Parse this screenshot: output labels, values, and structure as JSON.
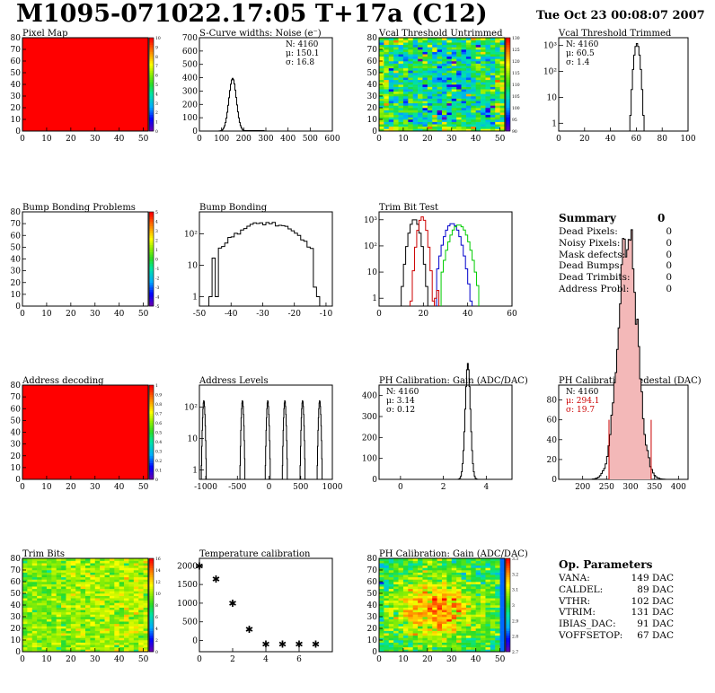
{
  "header": {
    "title": "M1095-071022.17:05 T+17a (C12)",
    "date": "Tue Oct 23 00:08:07 2007"
  },
  "colors": {
    "hist_red": "#cc0000",
    "hist_blue": "#0000cc",
    "hist_green": "#00cc00",
    "map_red": "#ff0000"
  },
  "chart_data": [
    {
      "id": "pixel-map",
      "type": "heatmap",
      "title": "Pixel Map",
      "xlim": [
        0,
        52
      ],
      "ylim": [
        0,
        80
      ],
      "xticks": [
        0,
        10,
        20,
        30,
        40,
        50
      ],
      "yticks": [
        0,
        10,
        20,
        30,
        40,
        50,
        60,
        70,
        80
      ],
      "colorbar": {
        "min": 0,
        "max": 10,
        "ticks": [
          "0",
          "1",
          "2",
          "3",
          "4",
          "5",
          "6",
          "7",
          "8",
          "9",
          "10"
        ]
      },
      "fill": "uniform",
      "value": 10
    },
    {
      "id": "s-curve",
      "type": "histogram",
      "title": "S-Curve widths: Noise (e⁻)",
      "xlim": [
        0,
        600
      ],
      "ylim": [
        0,
        700
      ],
      "xticks": [
        0,
        100,
        200,
        300,
        400,
        500,
        600
      ],
      "yticks": [
        0,
        100,
        200,
        300,
        400,
        500,
        600,
        700
      ],
      "stats": [
        "N: 4160",
        "μ: 150.1",
        "σ: 16.8"
      ],
      "mean": 150.1,
      "sigma": 16.8,
      "n": 4160,
      "binwidth": 4
    },
    {
      "id": "vcal-untrimmed",
      "type": "heatmap",
      "title": "Vcal Threshold Untrimmed",
      "xlim": [
        0,
        52
      ],
      "ylim": [
        0,
        80
      ],
      "xticks": [
        0,
        10,
        20,
        30,
        40,
        50
      ],
      "yticks": [
        0,
        10,
        20,
        30,
        40,
        50,
        60,
        70,
        80
      ],
      "colorbar": {
        "min": 90,
        "max": 132,
        "ticks": [
          "90",
          "95",
          "100",
          "105",
          "110",
          "115",
          "120",
          "125",
          "130"
        ]
      },
      "fill": "noise-bluish"
    },
    {
      "id": "vcal-trimmed",
      "type": "histogram",
      "title": "Vcal Threshold Trimmed",
      "xlim": [
        0,
        100
      ],
      "log": true,
      "ylim_log": [
        0.5,
        2000
      ],
      "xticks": [
        0,
        20,
        40,
        60,
        80,
        100
      ],
      "ytick_labels": [
        "1",
        "10",
        "10²",
        "10³"
      ],
      "stats": [
        "N: 4160",
        "μ: 60.5",
        "σ: 1.4"
      ],
      "mean": 60.5,
      "sigma": 1.4,
      "n": 4160,
      "binwidth": 1
    },
    {
      "id": "bump-problems",
      "type": "heatmap",
      "title": "Bump Bonding Problems",
      "xlim": [
        0,
        52
      ],
      "ylim": [
        0,
        80
      ],
      "xticks": [
        0,
        10,
        20,
        30,
        40,
        50
      ],
      "yticks": [
        0,
        10,
        20,
        30,
        40,
        50,
        60,
        70,
        80
      ],
      "colorbar": {
        "min": -5,
        "max": 5,
        "ticks": [
          "-5",
          "-4",
          "-3",
          "-2",
          "-1",
          "0",
          "1",
          "2",
          "3",
          "4",
          "5"
        ]
      },
      "fill": "empty"
    },
    {
      "id": "bump-bonding",
      "type": "histogram",
      "title": "Bump Bonding",
      "xlim": [
        -50,
        -8
      ],
      "log": true,
      "ylim_log": [
        0.5,
        500
      ],
      "xticks": [
        -50,
        -40,
        -30,
        -20,
        -10
      ],
      "ytick_labels": [
        "1",
        "10",
        "10²"
      ]
    },
    {
      "id": "trim-bit-test",
      "type": "histogram",
      "title": "Trim Bit Test",
      "xlim": [
        0,
        60
      ],
      "log": true,
      "ylim_log": [
        0.5,
        2000
      ],
      "xticks": [
        0,
        20,
        40,
        60
      ],
      "ytick_labels": [
        "1",
        "10",
        "10²",
        "10³"
      ]
    },
    {
      "id": "address-decoding",
      "type": "heatmap",
      "title": "Address decoding",
      "xlim": [
        0,
        52
      ],
      "ylim": [
        0,
        80
      ],
      "xticks": [
        0,
        10,
        20,
        30,
        40,
        50
      ],
      "yticks": [
        0,
        10,
        20,
        30,
        40,
        50,
        60,
        70,
        80
      ],
      "colorbar": {
        "min": 0,
        "max": 1,
        "ticks": [
          "0",
          "0.1",
          "0.2",
          "0.3",
          "0.4",
          "0.5",
          "0.6",
          "0.7",
          "0.8",
          "0.9",
          "1"
        ]
      },
      "fill": "uniform",
      "value": 1
    },
    {
      "id": "address-levels",
      "type": "histogram",
      "title": "Address Levels",
      "xlim": [
        -1100,
        1000
      ],
      "log": true,
      "ylim_log": [
        0.5,
        500
      ],
      "xticks": [
        -1000,
        -500,
        0,
        500,
        1000
      ],
      "ytick_labels": [
        "1",
        "10",
        "10²"
      ],
      "peaks": [
        -1030,
        -420,
        -20,
        250,
        530,
        800
      ]
    },
    {
      "id": "ph-gain",
      "type": "histogram",
      "title": "PH Calibration: Gain (ADC/DAC)",
      "xlim": [
        -1,
        5.2
      ],
      "ylim": [
        0,
        450
      ],
      "xticks": [
        0,
        2,
        4
      ],
      "yticks": [
        0,
        100,
        200,
        300,
        400
      ],
      "stats": [
        "N: 4160",
        "μ: 3.14",
        "σ: 0.12"
      ],
      "mean": 3.14,
      "sigma": 0.12,
      "n": 4160,
      "binwidth": 0.04
    },
    {
      "id": "ph-pedestal",
      "type": "histogram",
      "title": "PH Calibration: Pedestal (DAC)",
      "xlim": [
        150,
        420
      ],
      "ylim": [
        0,
        95
      ],
      "xticks": [
        200,
        250,
        300,
        350,
        400
      ],
      "yticks": [
        0,
        20,
        40,
        60,
        80
      ],
      "stats": [
        "N: 4160",
        "μ: 294.1",
        "σ: 19.7"
      ],
      "stats_colors": [
        "#000000",
        "#cc0000",
        "#cc0000"
      ],
      "mean": 294.1,
      "sigma": 19.7,
      "n": 4160,
      "binwidth": 3,
      "cut_lines": [
        255,
        343
      ]
    },
    {
      "id": "trim-bits",
      "type": "heatmap",
      "title": "Trim Bits",
      "xlim": [
        0,
        52
      ],
      "ylim": [
        0,
        80
      ],
      "xticks": [
        0,
        10,
        20,
        30,
        40,
        50
      ],
      "yticks": [
        0,
        10,
        20,
        30,
        40,
        50,
        60,
        70,
        80
      ],
      "colorbar": {
        "min": 0,
        "max": 16,
        "ticks": [
          "0",
          "2",
          "4",
          "6",
          "8",
          "10",
          "12",
          "14",
          "16"
        ]
      },
      "fill": "noise-yellow"
    },
    {
      "id": "temperature",
      "type": "scatter",
      "title": "Temperature calibration",
      "xlim": [
        0,
        8
      ],
      "ylim": [
        -300,
        2200
      ],
      "xticks": [
        0,
        2,
        4,
        6
      ],
      "yticks": [
        0,
        500,
        1000,
        1500,
        2000
      ],
      "x": [
        0,
        1,
        2,
        3,
        4,
        5,
        6,
        7
      ],
      "y": [
        2000,
        1650,
        1000,
        300,
        -100,
        -100,
        -100,
        -100
      ]
    },
    {
      "id": "ph-gain-map",
      "type": "heatmap",
      "title": "PH Calibration: Gain (ADC/DAC)",
      "xlim": [
        0,
        52
      ],
      "ylim": [
        0,
        80
      ],
      "xticks": [
        0,
        10,
        20,
        30,
        40,
        50
      ],
      "yticks": [
        0,
        10,
        20,
        30,
        40,
        50,
        60,
        70,
        80
      ],
      "colorbar": {
        "min": 2.65,
        "max": 3.35,
        "ticks": [
          "2.7",
          "2.8",
          "2.9",
          "3",
          "3.1",
          "3.2",
          "3.3"
        ]
      },
      "fill": "noise-hot"
    }
  ],
  "summary": {
    "title": "Summary",
    "total": "0",
    "rows": [
      {
        "label": "Dead Pixels:",
        "value": "0"
      },
      {
        "label": "Noisy Pixels:",
        "value": "0"
      },
      {
        "label": "Mask defects:",
        "value": "0"
      },
      {
        "label": "Dead Bumps:",
        "value": "0"
      },
      {
        "label": "Dead Trimbits:",
        "value": "0"
      },
      {
        "label": "Address Probl:",
        "value": "0"
      }
    ]
  },
  "op_params": {
    "title": "Op. Parameters",
    "rows": [
      {
        "label": "VANA:",
        "value": "149 DAC"
      },
      {
        "label": "CALDEL:",
        "value": "89 DAC"
      },
      {
        "label": "VTHR:",
        "value": "102 DAC"
      },
      {
        "label": "VTRIM:",
        "value": "131 DAC"
      },
      {
        "label": "IBIAS_DAC:",
        "value": "91 DAC"
      },
      {
        "label": "VOFFSETOP:",
        "value": "67 DAC"
      }
    ]
  }
}
